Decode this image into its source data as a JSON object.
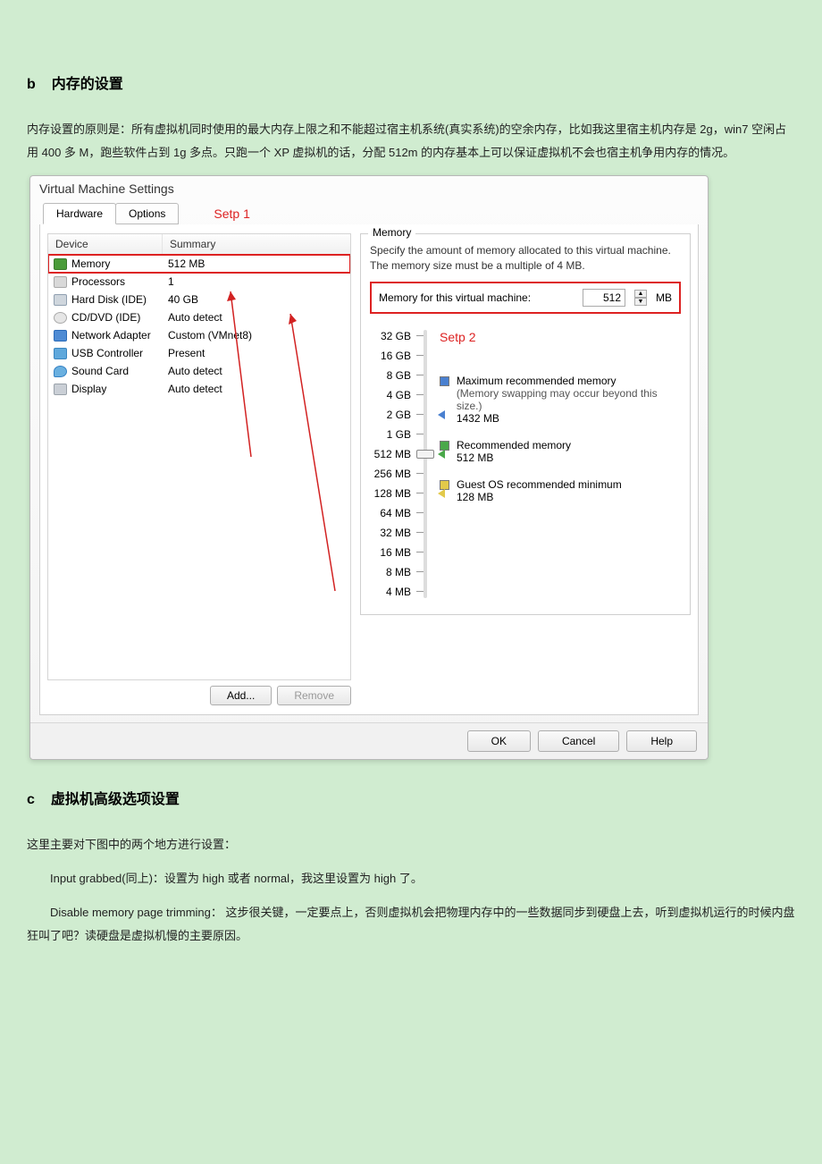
{
  "section_b": {
    "letter": "b",
    "title": "内存的设置"
  },
  "para_b": "内存设置的原则是：所有虚拟机同时使用的最大内存上限之和不能超过宿主机系统(真实系统)的空余内存，比如我这里宿主机内存是 2g，win7 空闲占用 400 多 M，跑些软件占到 1g 多点。只跑一个 XP 虚拟机的话，分配 512m 的内存基本上可以保证虚拟机不会也宿主机争用内存的情况。",
  "vm": {
    "title": "Virtual Machine Settings",
    "tabs": {
      "hardware": "Hardware",
      "options": "Options"
    },
    "step1": "Setp 1",
    "step2": "Setp 2",
    "columns": {
      "device": "Device",
      "summary": "Summary"
    },
    "rows": [
      {
        "name": "Memory",
        "summary": "512 MB",
        "ico": "ico-mem",
        "selected": true
      },
      {
        "name": "Processors",
        "summary": "1",
        "ico": "ico-cpu"
      },
      {
        "name": "Hard Disk (IDE)",
        "summary": "40 GB",
        "ico": "ico-hd"
      },
      {
        "name": "CD/DVD (IDE)",
        "summary": "Auto detect",
        "ico": "ico-cd"
      },
      {
        "name": "Network Adapter",
        "summary": "Custom (VMnet8)",
        "ico": "ico-net"
      },
      {
        "name": "USB Controller",
        "summary": "Present",
        "ico": "ico-usb"
      },
      {
        "name": "Sound Card",
        "summary": "Auto detect",
        "ico": "ico-snd"
      },
      {
        "name": "Display",
        "summary": "Auto detect",
        "ico": "ico-dsp"
      }
    ],
    "add": "Add...",
    "remove": "Remove",
    "mem_group_title": "Memory",
    "mem_desc": "Specify the amount of memory allocated to this virtual machine. The memory size must be a multiple of 4 MB.",
    "mem_label": "Memory for this virtual machine:",
    "mem_value": "512",
    "mem_unit": "MB",
    "scale": [
      "32 GB",
      "16 GB",
      "8 GB",
      "4 GB",
      "2 GB",
      "1 GB",
      "512 MB",
      "256 MB",
      "128 MB",
      "64 MB",
      "32 MB",
      "16 MB",
      "8 MB",
      "4 MB"
    ],
    "slider_index": 6,
    "marker_blue_index": 4,
    "marker_green_index": 6,
    "marker_yellow_index": 8,
    "legend_max": {
      "title": "Maximum recommended memory",
      "sub": "(Memory swapping may occur beyond this size.)",
      "val": "1432 MB"
    },
    "legend_rec": {
      "title": "Recommended memory",
      "val": "512 MB"
    },
    "legend_min": {
      "title": "Guest OS recommended minimum",
      "val": "128 MB"
    },
    "footer": {
      "ok": "OK",
      "cancel": "Cancel",
      "help": "Help"
    },
    "anno_color": "#d22222"
  },
  "section_c": {
    "letter": "c",
    "title": "虚拟机高级选项设置"
  },
  "para_c_1": "这里主要对下图中的两个地方进行设置：",
  "para_c_2": "Input grabbed(同上)：设置为 high 或者 normal，我这里设置为 high 了。",
  "para_c_3": "Disable memory page trimming：  这步很关键，一定要点上，否则虚拟机会把物理内存中的一些数据同步到硬盘上去，听到虚拟机运行的时候内盘狂叫了吧？读硬盘是虚拟机慢的主要原因。"
}
